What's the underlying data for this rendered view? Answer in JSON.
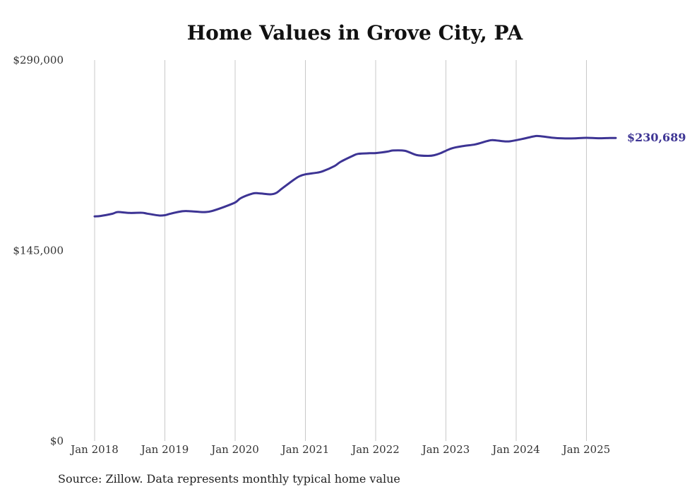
{
  "colors": {
    "line": "#3d3494",
    "grid": "#c8c8c8",
    "text": "#333333"
  },
  "chart_data": {
    "type": "line",
    "title": "Home Values in Grove City, PA",
    "xlabel": "",
    "ylabel": "",
    "ylim": [
      0,
      290000
    ],
    "y_ticks": [
      {
        "value": 0,
        "label": "$0"
      },
      {
        "value": 145000,
        "label": "$145,000"
      },
      {
        "value": 290000,
        "label": "$290,000"
      }
    ],
    "x_ticks": [
      "Jan 2018",
      "Jan 2019",
      "Jan 2020",
      "Jan 2021",
      "Jan 2022",
      "Jan 2023",
      "Jan 2024",
      "Jan 2025"
    ],
    "grid": "vertical",
    "end_label": "$230,689",
    "series": [
      {
        "points": [
          [
            "2018-01",
            171000
          ],
          [
            "2018-02",
            171300
          ],
          [
            "2018-04",
            173000
          ],
          [
            "2018-05",
            174300
          ],
          [
            "2018-07",
            173600
          ],
          [
            "2018-09",
            173800
          ],
          [
            "2018-10",
            173100
          ],
          [
            "2018-12",
            171700
          ],
          [
            "2019-01",
            171900
          ],
          [
            "2019-02",
            173100
          ],
          [
            "2019-04",
            174900
          ],
          [
            "2019-05",
            175000
          ],
          [
            "2019-07",
            174400
          ],
          [
            "2019-08",
            174300
          ],
          [
            "2019-09",
            175000
          ],
          [
            "2019-11",
            178000
          ],
          [
            "2020-01",
            181600
          ],
          [
            "2020-02",
            185000
          ],
          [
            "2020-04",
            188400
          ],
          [
            "2020-05",
            188600
          ],
          [
            "2020-07",
            187800
          ],
          [
            "2020-08",
            188800
          ],
          [
            "2020-09",
            192200
          ],
          [
            "2020-11",
            198800
          ],
          [
            "2020-12",
            201600
          ],
          [
            "2021-01",
            203000
          ],
          [
            "2021-03",
            204300
          ],
          [
            "2021-04",
            205400
          ],
          [
            "2021-06",
            209400
          ],
          [
            "2021-07",
            212500
          ],
          [
            "2021-09",
            216900
          ],
          [
            "2021-10",
            218600
          ],
          [
            "2021-12",
            219100
          ],
          [
            "2022-01",
            219200
          ],
          [
            "2022-03",
            220300
          ],
          [
            "2022-04",
            221200
          ],
          [
            "2022-06",
            220900
          ],
          [
            "2022-08",
            217700
          ],
          [
            "2022-10",
            217100
          ],
          [
            "2022-11",
            217600
          ],
          [
            "2022-12",
            219000
          ],
          [
            "2023-02",
            222800
          ],
          [
            "2023-04",
            224600
          ],
          [
            "2023-06",
            225800
          ],
          [
            "2023-08",
            228300
          ],
          [
            "2023-09",
            229100
          ],
          [
            "2023-11",
            228100
          ],
          [
            "2023-12",
            228200
          ],
          [
            "2024-02",
            229900
          ],
          [
            "2024-04",
            231900
          ],
          [
            "2024-05",
            232100
          ],
          [
            "2024-07",
            231000
          ],
          [
            "2024-09",
            230400
          ],
          [
            "2024-11",
            230400
          ],
          [
            "2025-01",
            230800
          ],
          [
            "2025-03",
            230500
          ],
          [
            "2025-05",
            230700
          ],
          [
            "2025-06",
            230689
          ]
        ]
      }
    ]
  },
  "footer": {
    "source": "Source: Zillow. Data represents monthly typical home value"
  }
}
